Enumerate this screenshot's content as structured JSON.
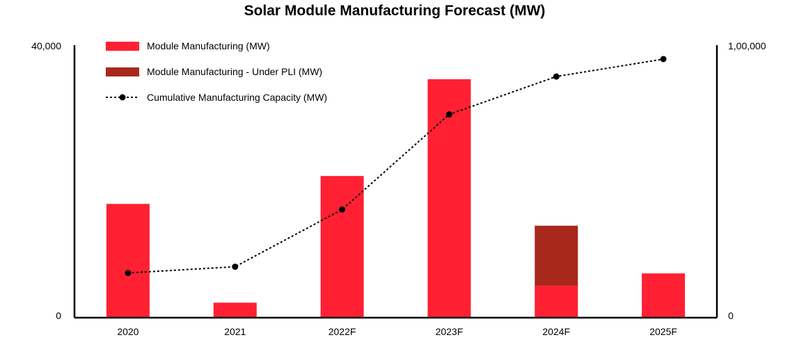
{
  "chart_data": {
    "type": "bar",
    "title": "Solar Module Manufacturing Forecast (MW)",
    "categories": [
      "2020",
      "2021",
      "2022F",
      "2023F",
      "2024F",
      "2025F"
    ],
    "series": [
      {
        "name": "Module Manufacturing (MW)",
        "kind": "bar",
        "stack": "a",
        "axis": "left",
        "color": "#ff2033",
        "values": [
          16700,
          2200,
          20800,
          35000,
          4700,
          6500
        ]
      },
      {
        "name": "Module Manufacturing - Under PLI (MW)",
        "kind": "bar",
        "stack": "a",
        "axis": "left",
        "color": "#a8281e",
        "values": [
          0,
          0,
          0,
          0,
          8800,
          0
        ]
      },
      {
        "name": "Cumulative Manufacturing Capacity (MW)",
        "kind": "line",
        "style": "dotted",
        "axis": "right",
        "color": "#000000",
        "values": [
          16400,
          18700,
          39700,
          74600,
          88500,
          94900
        ]
      }
    ],
    "left_axis": {
      "ylim": [
        0,
        40000
      ],
      "tick_labels": [
        "0",
        "40,000"
      ]
    },
    "right_axis": {
      "ylim": [
        0,
        100000
      ],
      "tick_labels": [
        "0",
        "1,00,000"
      ]
    },
    "grid": false,
    "legend_placement": "top-left"
  }
}
